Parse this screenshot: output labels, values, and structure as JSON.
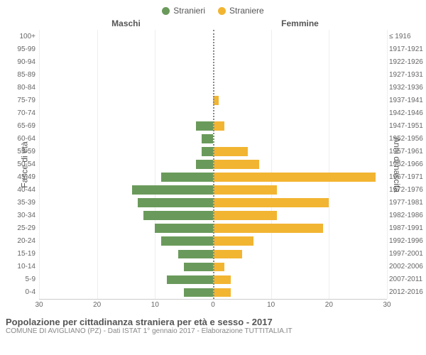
{
  "legend": {
    "male": {
      "label": "Stranieri",
      "color": "#6a9a5b"
    },
    "female": {
      "label": "Straniere",
      "color": "#f2b532"
    }
  },
  "headers": {
    "left": "Maschi",
    "right": "Femmine"
  },
  "axis_titles": {
    "left": "Fasce di età",
    "right": "Anni di nascita"
  },
  "footer": {
    "title": "Popolazione per cittadinanza straniera per età e sesso - 2017",
    "subtitle": "COMUNE DI AVIGLIANO (PZ) - Dati ISTAT 1° gennaio 2017 - Elaborazione TUTTITALIA.IT"
  },
  "chart": {
    "type": "pyramid",
    "x_max": 30,
    "x_ticks": [
      30,
      20,
      10,
      0,
      10,
      20,
      30
    ],
    "grid_color": "#eeeeee",
    "center_color": "#888888",
    "background_color": "#ffffff",
    "male_color": "#6a9a5b",
    "female_color": "#f2b532",
    "rows": [
      {
        "age": "100+",
        "birth": "≤ 1916",
        "m": 0,
        "f": 0
      },
      {
        "age": "95-99",
        "birth": "1917-1921",
        "m": 0,
        "f": 0
      },
      {
        "age": "90-94",
        "birth": "1922-1926",
        "m": 0,
        "f": 0
      },
      {
        "age": "85-89",
        "birth": "1927-1931",
        "m": 0,
        "f": 0
      },
      {
        "age": "80-84",
        "birth": "1932-1936",
        "m": 0,
        "f": 0
      },
      {
        "age": "75-79",
        "birth": "1937-1941",
        "m": 0,
        "f": 1
      },
      {
        "age": "70-74",
        "birth": "1942-1946",
        "m": 0,
        "f": 0
      },
      {
        "age": "65-69",
        "birth": "1947-1951",
        "m": 3,
        "f": 2
      },
      {
        "age": "60-64",
        "birth": "1952-1956",
        "m": 2,
        "f": 0
      },
      {
        "age": "55-59",
        "birth": "1957-1961",
        "m": 2,
        "f": 6
      },
      {
        "age": "50-54",
        "birth": "1962-1966",
        "m": 3,
        "f": 8
      },
      {
        "age": "45-49",
        "birth": "1967-1971",
        "m": 9,
        "f": 28
      },
      {
        "age": "40-44",
        "birth": "1972-1976",
        "m": 14,
        "f": 11
      },
      {
        "age": "35-39",
        "birth": "1977-1981",
        "m": 13,
        "f": 20
      },
      {
        "age": "30-34",
        "birth": "1982-1986",
        "m": 12,
        "f": 11
      },
      {
        "age": "25-29",
        "birth": "1987-1991",
        "m": 10,
        "f": 19
      },
      {
        "age": "20-24",
        "birth": "1992-1996",
        "m": 9,
        "f": 7
      },
      {
        "age": "15-19",
        "birth": "1997-2001",
        "m": 6,
        "f": 5
      },
      {
        "age": "10-14",
        "birth": "2002-2006",
        "m": 5,
        "f": 2
      },
      {
        "age": "5-9",
        "birth": "2007-2011",
        "m": 8,
        "f": 3
      },
      {
        "age": "0-4",
        "birth": "2012-2016",
        "m": 5,
        "f": 3
      }
    ]
  }
}
